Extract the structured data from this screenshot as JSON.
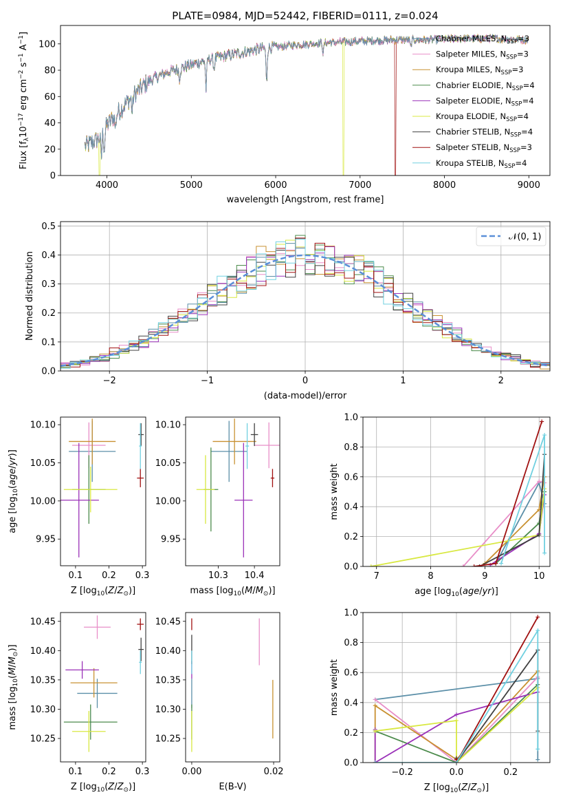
{
  "figure_title": "PLATE=0984, MJD=52442, FIBERID=0111, z=0.024",
  "series_names": [
    "Chabrier MILES, N_SSP=3",
    "Salpeter MILES, N_SSP=3",
    "Kroupa MILES, N_SSP=3",
    "Chabrier ELODIE, N_SSP=4",
    "Salpeter ELODIE, N_SSP=4",
    "Kroupa ELODIE, N_SSP=4",
    "Chabrier STELIB, N_SSP=4",
    "Salpeter STELIB, N_SSP=3",
    "Kroupa STELIB, N_SSP=4"
  ],
  "legend_html": [
    "Chabrier MILES, N<tspan font-size='8.5' dy='3'>SSP</tspan><tspan dy='-3'>=3</tspan>",
    "Salpeter MILES, N<tspan font-size='8.5' dy='3'>SSP</tspan><tspan dy='-3'>=3</tspan>",
    "Kroupa MILES, N<tspan font-size='8.5' dy='3'>SSP</tspan><tspan dy='-3'>=3</tspan>",
    "Chabrier ELODIE, N<tspan font-size='8.5' dy='3'>SSP</tspan><tspan dy='-3'>=4</tspan>",
    "Salpeter ELODIE, N<tspan font-size='8.5' dy='3'>SSP</tspan><tspan dy='-3'>=4</tspan>",
    "Kroupa ELODIE, N<tspan font-size='8.5' dy='3'>SSP</tspan><tspan dy='-3'>=4</tspan>",
    "Chabrier STELIB, N<tspan font-size='8.5' dy='3'>SSP</tspan><tspan dy='-3'>=4</tspan>",
    "Salpeter STELIB, N<tspan font-size='8.5' dy='3'>SSP</tspan><tspan dy='-3'>=3</tspan>",
    "Kroupa STELIB, N<tspan font-size='8.5' dy='3'>SSP</tspan><tspan dy='-3'>=4</tspan>"
  ],
  "colors": [
    "#5b8fa8",
    "#e88ec8",
    "#c89030",
    "#4a8a4a",
    "#9a30b8",
    "#d8e840",
    "#404040",
    "#a01010",
    "#70d0e0"
  ],
  "chart_data": [
    {
      "id": "spectrum",
      "type": "line",
      "xlabel": "wavelength [Angstrom, rest frame]",
      "ylabel": "Flux [f_λ 10^-17 erg cm^-2 s^-1 A^-1]",
      "xlim": [
        3450,
        9250
      ],
      "ylim": [
        0,
        114
      ],
      "xticks": [
        4000,
        5000,
        6000,
        7000,
        8000,
        9000
      ],
      "yticks": [
        0,
        20,
        40,
        60,
        80,
        100
      ],
      "continuum_points": [
        [
          3740,
          22
        ],
        [
          3900,
          28
        ],
        [
          4000,
          38
        ],
        [
          4100,
          46
        ],
        [
          4300,
          60
        ],
        [
          4500,
          72
        ],
        [
          4700,
          78
        ],
        [
          5000,
          84
        ],
        [
          5200,
          88
        ],
        [
          5500,
          92
        ],
        [
          5800,
          96
        ],
        [
          6200,
          99
        ],
        [
          6600,
          101
        ],
        [
          7000,
          102
        ],
        [
          7400,
          103
        ],
        [
          7800,
          103
        ],
        [
          8200,
          104
        ],
        [
          8600,
          104
        ],
        [
          9000,
          103
        ]
      ],
      "absorption_lines": [
        {
          "x": 3934,
          "depth": 18
        },
        {
          "x": 3969,
          "depth": 14
        },
        {
          "x": 4102,
          "depth": 10
        },
        {
          "x": 4300,
          "depth": 12
        },
        {
          "x": 4861,
          "depth": 8
        },
        {
          "x": 5175,
          "depth": 22
        },
        {
          "x": 5270,
          "depth": 8
        },
        {
          "x": 5892,
          "depth": 26
        },
        {
          "x": 6563,
          "depth": 8
        },
        {
          "x": 7600,
          "depth": 6
        }
      ],
      "dropouts": [
        {
          "x": 3910,
          "series": 5
        },
        {
          "x": 6805,
          "series": 5
        },
        {
          "x": 7420,
          "series": 7
        }
      ]
    },
    {
      "id": "residuals",
      "type": "bar",
      "xlabel": "(data-model)/error",
      "ylabel": "Normed distribution",
      "xlim": [
        -2.5,
        2.5
      ],
      "ylim": [
        0,
        0.515
      ],
      "xticks": [
        -2,
        -1,
        0,
        1,
        2
      ],
      "yticks": [
        0.0,
        0.1,
        0.2,
        0.3,
        0.4,
        0.5
      ],
      "legend_label": "𝒩(0, 1)",
      "bin_width": 0.1,
      "gaussian": {
        "mean": 0,
        "sigma": 1
      }
    },
    {
      "id": "age_vs_Z",
      "type": "scatter",
      "xlabel": "Z [log10(Z/Z⊙)]",
      "ylabel": "age [log10(age/yr)]",
      "xlim": [
        0.055,
        0.31
      ],
      "ylim": [
        9.915,
        10.11
      ],
      "xticks": [
        0.1,
        0.2,
        0.3
      ],
      "yticks": [
        9.95,
        10.0,
        10.05,
        10.1
      ],
      "points": [
        {
          "s": 0,
          "x": 0.15,
          "y": 10.065,
          "xe": 0.07,
          "ye": 0.04
        },
        {
          "s": 1,
          "x": 0.14,
          "y": 10.073,
          "xe": 0.05,
          "ye": 0.03
        },
        {
          "s": 2,
          "x": 0.15,
          "y": 10.078,
          "xe": 0.07,
          "ye": 0.03
        },
        {
          "s": 3,
          "x": 0.14,
          "y": 10.015,
          "xe": 0.05,
          "ye": 0.045
        },
        {
          "s": 4,
          "x": 0.11,
          "y": 10.001,
          "xe": 0.06,
          "ye": 0.075
        },
        {
          "s": 5,
          "x": 0.145,
          "y": 10.015,
          "xe": 0.08,
          "ye": 0.03
        },
        {
          "s": 6,
          "x": 0.296,
          "y": 10.087,
          "xe": 0.008,
          "ye": 0.015
        },
        {
          "s": 7,
          "x": 0.294,
          "y": 10.03,
          "xe": 0.01,
          "ye": 0.012
        },
        {
          "s": 8,
          "x": 0.294,
          "y": 10.072,
          "xe": 0.004,
          "ye": 0.03
        }
      ]
    },
    {
      "id": "age_vs_mass",
      "type": "scatter",
      "xlabel": "mass [log10(M/M⊙)]",
      "ylabel": "",
      "xlim": [
        10.21,
        10.47
      ],
      "ylim": [
        9.915,
        10.11
      ],
      "xticks": [
        10.3,
        10.4
      ],
      "yticks": [
        9.95,
        10.0,
        10.05,
        10.1
      ],
      "points": [
        {
          "s": 0,
          "x": 10.33,
          "y": 10.065,
          "xe": 0.05,
          "ye": 0.04
        },
        {
          "s": 1,
          "x": 10.44,
          "y": 10.073,
          "xe": 0.04,
          "ye": 0.03
        },
        {
          "s": 2,
          "x": 10.345,
          "y": 10.078,
          "xe": 0.06,
          "ye": 0.03
        },
        {
          "s": 3,
          "x": 10.28,
          "y": 10.015,
          "xe": 0.02,
          "ye": 0.055
        },
        {
          "s": 4,
          "x": 10.37,
          "y": 10.001,
          "xe": 0.025,
          "ye": 0.075
        },
        {
          "s": 5,
          "x": 10.265,
          "y": 10.015,
          "xe": 0.025,
          "ye": 0.045
        },
        {
          "s": 6,
          "x": 10.4,
          "y": 10.087,
          "xe": 0.01,
          "ye": 0.015
        },
        {
          "s": 7,
          "x": 10.45,
          "y": 10.03,
          "xe": 0.005,
          "ye": 0.012
        },
        {
          "s": 8,
          "x": 10.38,
          "y": 10.072,
          "xe": 0.005,
          "ye": 0.03
        }
      ]
    },
    {
      "id": "mass_vs_Z",
      "type": "scatter",
      "xlabel": "Z [log10(Z/Z⊙)]",
      "ylabel": "mass [log10(M/M⊙)]",
      "xlim": [
        0.055,
        0.31
      ],
      "ylim": [
        10.21,
        10.465
      ],
      "xticks": [
        0.1,
        0.2,
        0.3
      ],
      "yticks": [
        10.25,
        10.3,
        10.35,
        10.4,
        10.45
      ],
      "points": [
        {
          "s": 0,
          "x": 0.165,
          "y": 10.327,
          "xe": 0.06,
          "ye": 0.025
        },
        {
          "s": 1,
          "x": 0.165,
          "y": 10.44,
          "xe": 0.04,
          "ye": 0.02
        },
        {
          "s": 2,
          "x": 0.155,
          "y": 10.345,
          "xe": 0.07,
          "ye": 0.025
        },
        {
          "s": 3,
          "x": 0.145,
          "y": 10.278,
          "xe": 0.08,
          "ye": 0.03
        },
        {
          "s": 4,
          "x": 0.12,
          "y": 10.367,
          "xe": 0.05,
          "ye": 0.015
        },
        {
          "s": 5,
          "x": 0.14,
          "y": 10.262,
          "xe": 0.05,
          "ye": 0.035
        },
        {
          "s": 6,
          "x": 0.296,
          "y": 10.402,
          "xe": 0.008,
          "ye": 0.02
        },
        {
          "s": 7,
          "x": 0.294,
          "y": 10.445,
          "xe": 0.01,
          "ye": 0.01
        },
        {
          "s": 8,
          "x": 0.294,
          "y": 10.38,
          "xe": 0.004,
          "ye": 0.02
        }
      ]
    },
    {
      "id": "mass_vs_ebv",
      "type": "scatter",
      "xlabel": "E(B-V)",
      "ylabel": "",
      "xlim": [
        -0.0015,
        0.0215
      ],
      "ylim": [
        10.21,
        10.465
      ],
      "xticks": [
        0.0,
        0.02
      ],
      "yticks": [
        10.25,
        10.3,
        10.35,
        10.4,
        10.45
      ],
      "points": [
        {
          "s": 0,
          "x": 0.0,
          "y": 10.327,
          "xe": 0,
          "ye": 0.025
        },
        {
          "s": 1,
          "x": 0.0165,
          "y": 10.415,
          "xe": 0,
          "ye": 0.04
        },
        {
          "s": 2,
          "x": 0.0198,
          "y": 10.3,
          "xe": 0,
          "ye": 0.05
        },
        {
          "s": 3,
          "x": 0.0,
          "y": 10.278,
          "xe": 0,
          "ye": 0.03
        },
        {
          "s": 4,
          "x": 0.0,
          "y": 10.367,
          "xe": 0,
          "ye": 0.015
        },
        {
          "s": 5,
          "x": 0.0,
          "y": 10.262,
          "xe": 0,
          "ye": 0.035
        },
        {
          "s": 6,
          "x": 0.0,
          "y": 10.402,
          "xe": 0,
          "ye": 0.025
        },
        {
          "s": 7,
          "x": 0.0,
          "y": 10.445,
          "xe": 0,
          "ye": 0.01
        },
        {
          "s": 8,
          "x": 0.0,
          "y": 10.38,
          "xe": 0,
          "ye": 0.02
        }
      ]
    },
    {
      "id": "weight_vs_age",
      "type": "line",
      "xlabel": "age [log10(age/yr)]",
      "ylabel": "mass weight",
      "xlim": [
        6.75,
        10.2
      ],
      "ylim": [
        0,
        1.0
      ],
      "xticks": [
        7,
        8,
        9,
        10
      ],
      "yticks": [
        0.0,
        0.2,
        0.4,
        0.6,
        0.8,
        1.0
      ],
      "series": [
        {
          "s": 0,
          "x": [
            9.2,
            10.0,
            10.1
          ],
          "y": [
            0.02,
            0.56,
            0.42
          ]
        },
        {
          "s": 1,
          "x": [
            8.6,
            10.0,
            10.1
          ],
          "y": [
            0.0,
            0.57,
            0.56
          ]
        },
        {
          "s": 2,
          "x": [
            9.0,
            10.0,
            10.1
          ],
          "y": [
            0.02,
            0.38,
            0.6
          ]
        },
        {
          "s": 3,
          "x": [
            9.2,
            10.0,
            10.1
          ],
          "y": [
            0.02,
            0.29,
            0.5
          ]
        },
        {
          "s": 4,
          "x": [
            9.1,
            10.0,
            10.1
          ],
          "y": [
            0.01,
            0.22,
            0.48
          ]
        },
        {
          "s": 5,
          "x": [
            6.9,
            10.0,
            10.1
          ],
          "y": [
            0.0,
            0.21,
            0.52
          ]
        },
        {
          "s": 6,
          "x": [
            8.9,
            10.0,
            10.1
          ],
          "y": [
            0.0,
            0.21,
            0.75
          ]
        },
        {
          "s": 7,
          "x": [
            8.8,
            9.2,
            10.05
          ],
          "y": [
            0.0,
            0.02,
            0.97
          ]
        },
        {
          "s": 8,
          "x": [
            9.3,
            10.1,
            10.1
          ],
          "y": [
            0.02,
            0.88,
            0.09
          ]
        }
      ]
    },
    {
      "id": "weight_vs_Z",
      "type": "line",
      "xlabel": "Z [log10(Z/Z⊙)]",
      "ylabel": "mass weight",
      "xlim": [
        -0.345,
        0.345
      ],
      "ylim": [
        0,
        1.0
      ],
      "xticks": [
        -0.2,
        0.0,
        0.2
      ],
      "yticks": [
        0.0,
        0.2,
        0.4,
        0.6,
        0.8,
        1.0
      ],
      "series": [
        {
          "s": 0,
          "x": [
            -0.3,
            0.3,
            0.3
          ],
          "y": [
            0.42,
            0.56,
            0.02
          ]
        },
        {
          "s": 1,
          "x": [
            -0.3,
            0.0,
            0.3
          ],
          "y": [
            0.42,
            0.0,
            0.57
          ]
        },
        {
          "s": 2,
          "x": [
            -0.3,
            -0.3,
            0.0,
            0.3
          ],
          "y": [
            0.0,
            0.38,
            0.02,
            0.61
          ]
        },
        {
          "s": 3,
          "x": [
            -0.3,
            0.0,
            0.3
          ],
          "y": [
            0.21,
            0.0,
            0.52
          ]
        },
        {
          "s": 4,
          "x": [
            -0.3,
            -0.3,
            0.0,
            0.3
          ],
          "y": [
            0.22,
            0.0,
            0.32,
            0.47
          ]
        },
        {
          "s": 5,
          "x": [
            -0.3,
            0.0,
            0.0,
            0.3
          ],
          "y": [
            0.21,
            0.28,
            0.0,
            0.5
          ]
        },
        {
          "s": 6,
          "x": [
            0.0,
            0.0,
            0.3,
            0.3
          ],
          "y": [
            0.03,
            0.0,
            0.75,
            0.21
          ]
        },
        {
          "s": 7,
          "x": [
            0.0,
            0.0,
            0.3
          ],
          "y": [
            0.02,
            0.0,
            0.97
          ]
        },
        {
          "s": 8,
          "x": [
            -0.3,
            0.0,
            0.3,
            0.3
          ],
          "y": [
            0.0,
            0.0,
            0.88,
            0.09
          ]
        }
      ]
    }
  ]
}
